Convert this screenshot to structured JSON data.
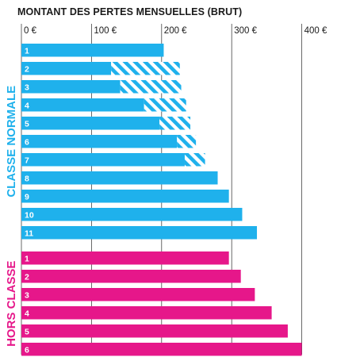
{
  "chart_data": {
    "type": "bar",
    "orientation": "horizontal",
    "title": "MONTANT DES PERTES MENSUELLES (BRUT)",
    "x_ticks": [
      "0 €",
      "100 €",
      "200 €",
      "300 €",
      "400 €"
    ],
    "tick_values": [
      0,
      100,
      200,
      300,
      400
    ],
    "xlim": [
      0,
      420
    ],
    "grid": true,
    "colors": {
      "normal": "#1fb1ec",
      "hors": "#e6178a",
      "grid": "#444444",
      "text": "#1a1a1a"
    },
    "groups": [
      {
        "name": "CLASSE NORMALE",
        "color": "#1fb1ec",
        "bars": [
          {
            "label": "1",
            "solid": 203,
            "hatched": 0
          },
          {
            "label": "2",
            "solid": 128,
            "hatched": 98
          },
          {
            "label": "3",
            "solid": 141,
            "hatched": 87
          },
          {
            "label": "4",
            "solid": 175,
            "hatched": 60
          },
          {
            "label": "5",
            "solid": 197,
            "hatched": 44
          },
          {
            "label": "6",
            "solid": 222,
            "hatched": 27
          },
          {
            "label": "7",
            "solid": 233,
            "hatched": 29
          },
          {
            "label": "8",
            "solid": 280,
            "hatched": 0
          },
          {
            "label": "9",
            "solid": 296,
            "hatched": 0
          },
          {
            "label": "10",
            "solid": 315,
            "hatched": 0
          },
          {
            "label": "11",
            "solid": 336,
            "hatched": 0
          }
        ]
      },
      {
        "name": "HORS CLASSE",
        "color": "#e6178a",
        "bars": [
          {
            "label": "1",
            "solid": 296,
            "hatched": 0
          },
          {
            "label": "2",
            "solid": 313,
            "hatched": 0
          },
          {
            "label": "3",
            "solid": 333,
            "hatched": 0
          },
          {
            "label": "4",
            "solid": 357,
            "hatched": 0
          },
          {
            "label": "5",
            "solid": 380,
            "hatched": 0
          },
          {
            "label": "6",
            "solid": 400,
            "hatched": 0
          }
        ]
      }
    ]
  }
}
